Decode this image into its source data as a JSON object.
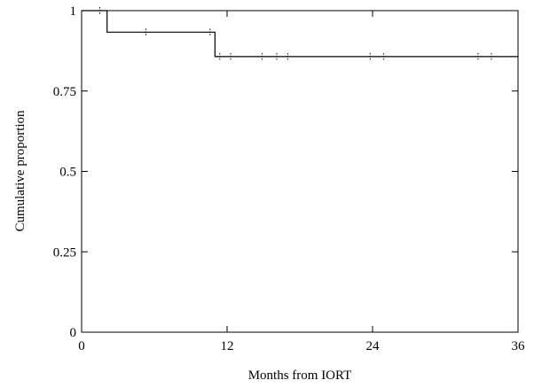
{
  "chart_data": {
    "type": "line",
    "title": "",
    "xlabel": "Months from IORT",
    "ylabel": "Cumulative proportion",
    "xlim": [
      0,
      36
    ],
    "ylim": [
      0,
      1
    ],
    "x_ticks": [
      0,
      12,
      24,
      36
    ],
    "x_tick_labels": [
      "0",
      "12",
      "24",
      "36"
    ],
    "y_ticks": [
      0,
      0.25,
      0.5,
      0.75,
      1
    ],
    "y_tick_labels": [
      "0",
      "0.25",
      "0.5",
      "0.75",
      "1"
    ],
    "grid": false,
    "series": [
      {
        "step_points": [
          [
            0,
            1.0
          ],
          [
            2.1,
            1.0
          ],
          [
            2.1,
            0.933
          ],
          [
            11.0,
            0.933
          ],
          [
            11.0,
            0.857
          ],
          [
            36,
            0.857
          ]
        ],
        "censor_marks": [
          [
            1.5,
            1.0
          ],
          [
            5.3,
            0.933
          ],
          [
            10.6,
            0.933
          ],
          [
            11.4,
            0.857
          ],
          [
            12.3,
            0.857
          ],
          [
            14.9,
            0.857
          ],
          [
            16.1,
            0.857
          ],
          [
            17.0,
            0.857
          ],
          [
            23.8,
            0.857
          ],
          [
            24.9,
            0.857
          ],
          [
            32.7,
            0.857
          ],
          [
            33.8,
            0.857
          ]
        ]
      }
    ]
  }
}
